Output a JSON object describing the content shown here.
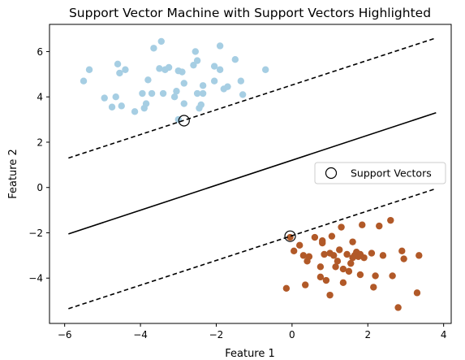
{
  "chart_data": {
    "type": "scatter",
    "title": "Support Vector Machine with Support Vectors Highlighted",
    "xlabel": "Feature 1",
    "ylabel": "Feature 2",
    "xlim": [
      -6.4,
      4.2
    ],
    "ylim": [
      -6.0,
      7.2
    ],
    "xticks": [
      -6,
      -4,
      -2,
      0,
      2,
      4
    ],
    "xtick_labels": [
      "−6",
      "−4",
      "−2",
      "0",
      "2",
      "4"
    ],
    "yticks": [
      -4,
      -2,
      0,
      2,
      4,
      6
    ],
    "ytick_labels": [
      "−4",
      "−2",
      "0",
      "2",
      "4",
      "6"
    ],
    "grid": false,
    "legend": {
      "position": "center-right",
      "entries": [
        "Support Vectors"
      ]
    },
    "colors": {
      "class_a": "#a6cee3",
      "class_b": "#b15928",
      "lines": "#000000"
    },
    "series": [
      {
        "values": [
          [
            -5.5,
            4.7
          ],
          [
            -5.35,
            5.2
          ],
          [
            -4.95,
            3.95
          ],
          [
            -4.75,
            3.55
          ],
          [
            -4.65,
            4.0
          ],
          [
            -4.6,
            5.45
          ],
          [
            -4.55,
            5.05
          ],
          [
            -4.5,
            3.6
          ],
          [
            -4.4,
            5.2
          ],
          [
            -4.15,
            3.35
          ],
          [
            -3.95,
            4.15
          ],
          [
            -3.9,
            3.5
          ],
          [
            -3.85,
            3.7
          ],
          [
            -3.8,
            4.75
          ],
          [
            -3.7,
            4.15
          ],
          [
            -3.65,
            6.15
          ],
          [
            -3.5,
            5.25
          ],
          [
            -3.45,
            6.45
          ],
          [
            -3.4,
            4.15
          ],
          [
            -3.35,
            5.2
          ],
          [
            -3.25,
            5.3
          ],
          [
            -3.1,
            4.0
          ],
          [
            -3.05,
            4.25
          ],
          [
            -3.0,
            3.0
          ],
          [
            -3.0,
            5.15
          ],
          [
            -2.9,
            5.1
          ],
          [
            -2.85,
            3.7
          ],
          [
            -2.85,
            4.6
          ],
          [
            -2.6,
            5.4
          ],
          [
            -2.55,
            6.0
          ],
          [
            -2.5,
            5.6
          ],
          [
            -2.5,
            4.15
          ],
          [
            -2.45,
            3.5
          ],
          [
            -2.4,
            3.65
          ],
          [
            -2.35,
            4.15
          ],
          [
            -2.35,
            4.5
          ],
          [
            -2.05,
            4.7
          ],
          [
            -2.05,
            5.35
          ],
          [
            -1.9,
            6.25
          ],
          [
            -1.9,
            5.2
          ],
          [
            -1.8,
            4.35
          ],
          [
            -1.7,
            4.45
          ],
          [
            -1.5,
            5.65
          ],
          [
            -1.35,
            4.7
          ],
          [
            -1.3,
            4.1
          ],
          [
            -0.7,
            5.2
          ]
        ]
      },
      {
        "values": [
          [
            -0.15,
            -4.45
          ],
          [
            -0.05,
            -2.2
          ],
          [
            0.05,
            -2.8
          ],
          [
            0.2,
            -2.55
          ],
          [
            0.3,
            -3.0
          ],
          [
            0.35,
            -4.3
          ],
          [
            0.4,
            -3.25
          ],
          [
            0.45,
            -3.05
          ],
          [
            0.6,
            -2.2
          ],
          [
            0.75,
            -3.5
          ],
          [
            0.75,
            -3.95
          ],
          [
            0.8,
            -2.35
          ],
          [
            0.8,
            -2.45
          ],
          [
            0.85,
            -2.95
          ],
          [
            0.9,
            -4.1
          ],
          [
            1.0,
            -4.75
          ],
          [
            1.0,
            -2.9
          ],
          [
            1.05,
            -2.15
          ],
          [
            1.1,
            -3.0
          ],
          [
            1.15,
            -3.5
          ],
          [
            1.2,
            -3.25
          ],
          [
            1.25,
            -2.75
          ],
          [
            1.3,
            -1.75
          ],
          [
            1.35,
            -3.6
          ],
          [
            1.35,
            -4.2
          ],
          [
            1.45,
            -2.95
          ],
          [
            1.5,
            -3.7
          ],
          [
            1.55,
            -3.35
          ],
          [
            1.6,
            -2.4
          ],
          [
            1.6,
            -3.1
          ],
          [
            1.65,
            -3.0
          ],
          [
            1.7,
            -2.85
          ],
          [
            1.75,
            -3.05
          ],
          [
            1.8,
            -2.95
          ],
          [
            1.8,
            -3.85
          ],
          [
            1.85,
            -1.65
          ],
          [
            1.9,
            -3.1
          ],
          [
            2.1,
            -2.9
          ],
          [
            2.15,
            -4.4
          ],
          [
            2.2,
            -3.9
          ],
          [
            2.3,
            -1.7
          ],
          [
            2.4,
            -3.0
          ],
          [
            2.6,
            -1.45
          ],
          [
            2.65,
            -3.9
          ],
          [
            2.8,
            -5.3
          ],
          [
            2.9,
            -2.8
          ],
          [
            2.95,
            -3.15
          ],
          [
            3.3,
            -4.65
          ],
          [
            3.35,
            -3.0
          ]
        ]
      }
    ],
    "support_vectors": [
      [
        -2.85,
        2.95
      ],
      [
        -0.05,
        -2.15
      ]
    ],
    "decision_boundary": {
      "x": [
        -5.9,
        3.8
      ],
      "y": [
        -2.05,
        3.3
      ]
    },
    "margin_upper": {
      "x": [
        -5.9,
        3.8
      ],
      "y": [
        1.3,
        6.6
      ]
    },
    "margin_lower": {
      "x": [
        -5.9,
        3.8
      ],
      "y": [
        -5.35,
        -0.05
      ]
    }
  }
}
